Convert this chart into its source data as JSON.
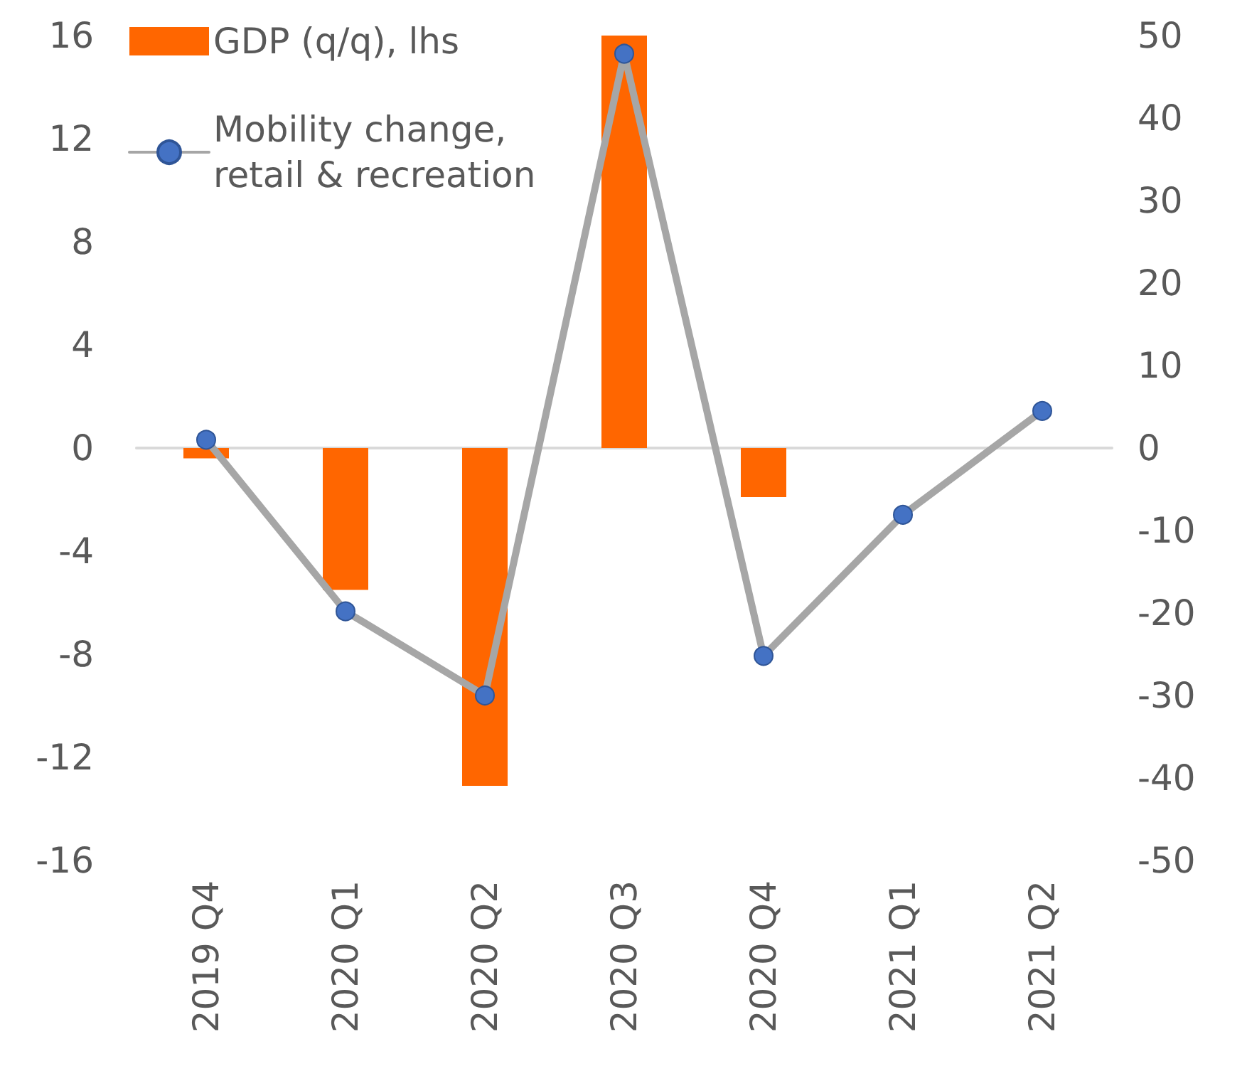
{
  "chart_data": {
    "type": "bar",
    "categories": [
      "2019 Q4",
      "2020 Q1",
      "2020 Q2",
      "2020 Q3",
      "2020 Q4",
      "2021 Q1",
      "2021 Q2"
    ],
    "series": [
      {
        "name": "GDP (q/q), lhs",
        "color": "#ff6600",
        "values": [
          -0.4,
          -5.5,
          -13.1,
          16.0,
          -1.9,
          null,
          null
        ]
      },
      {
        "name": "Mobility change, retail & recreation",
        "type": "line",
        "axis": "y2",
        "color": "#a6a6a6",
        "marker": "circle",
        "values": [
          1.0,
          -19.8,
          -30.0,
          47.8,
          -25.2,
          -8.1,
          4.5
        ]
      }
    ],
    "ylim": [
      -16,
      16
    ],
    "yticks": [
      -16,
      -12,
      -8,
      -4,
      0,
      4,
      8,
      12,
      16
    ],
    "y2lim": [
      -50,
      50
    ],
    "y2ticks": [
      -50,
      -40,
      -30,
      -20,
      -10,
      0,
      10,
      20,
      30,
      40,
      50
    ],
    "legend": "top left"
  }
}
